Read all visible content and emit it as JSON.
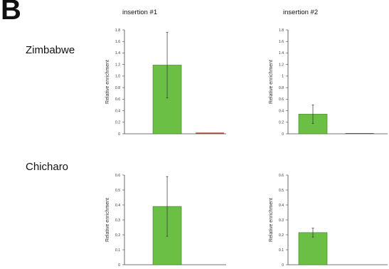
{
  "figure": {
    "panel_letter": "B",
    "columns": [
      "insertion #1",
      "insertion #2"
    ],
    "rows": [
      "Zimbabwe",
      "Chicharo"
    ]
  },
  "colors": {
    "bar_primary": "#6cbf45",
    "bar_secondary": "#b23a2e",
    "axis": "#444444"
  },
  "chart_data": [
    {
      "type": "bar",
      "row": "Zimbabwe",
      "column": "insertion #1",
      "ylabel": "Relative enrichment",
      "ylim": [
        0,
        1.8
      ],
      "yticks": [
        "0",
        "0.2",
        "0.4",
        "0.6",
        "0.8",
        "1.0",
        "1.2",
        "1.4",
        "1.6",
        "1.8"
      ],
      "categories": [
        "",
        ""
      ],
      "values": [
        1.19,
        0.02
      ],
      "errors": [
        0.57,
        0
      ],
      "bar_colors": [
        "#6cbf45",
        "#b23a2e"
      ]
    },
    {
      "type": "bar",
      "row": "Zimbabwe",
      "column": "insertion #2",
      "ylabel": "Relative enrichment",
      "ylim": [
        0,
        1.8
      ],
      "yticks": [
        "0",
        "0.2",
        "0.4",
        "0.6",
        "0.8",
        "1",
        "1.2",
        "1.4",
        "1.6",
        "1.8"
      ],
      "categories": [
        "",
        ""
      ],
      "values": [
        0.34,
        0.01
      ],
      "errors": [
        0.16,
        0
      ],
      "bar_colors": [
        "#6cbf45",
        "#333333"
      ]
    },
    {
      "type": "bar",
      "row": "Chicharo",
      "column": "insertion #1",
      "ylabel": "Relative enrichment",
      "ylim": [
        0,
        0.6
      ],
      "yticks": [
        "0",
        "0.1",
        "0.2",
        "0.3",
        "0.4",
        "0.5",
        "0.6"
      ],
      "categories": [
        "",
        ""
      ],
      "values": [
        0.39,
        0.0
      ],
      "errors": [
        0.2,
        0
      ],
      "bar_colors": [
        "#6cbf45",
        "#6cbf45"
      ]
    },
    {
      "type": "bar",
      "row": "Chicharo",
      "column": "insertion #2",
      "ylabel": "Relative enrichment",
      "ylim": [
        0,
        0.6
      ],
      "yticks": [
        "0",
        "0.1",
        "0.2",
        "0.3",
        "0.4",
        "0.5",
        "0.6"
      ],
      "categories": [
        "",
        ""
      ],
      "values": [
        0.215,
        0.0
      ],
      "errors": [
        0.03,
        0
      ],
      "bar_colors": [
        "#6cbf45",
        "#6cbf45"
      ]
    }
  ]
}
